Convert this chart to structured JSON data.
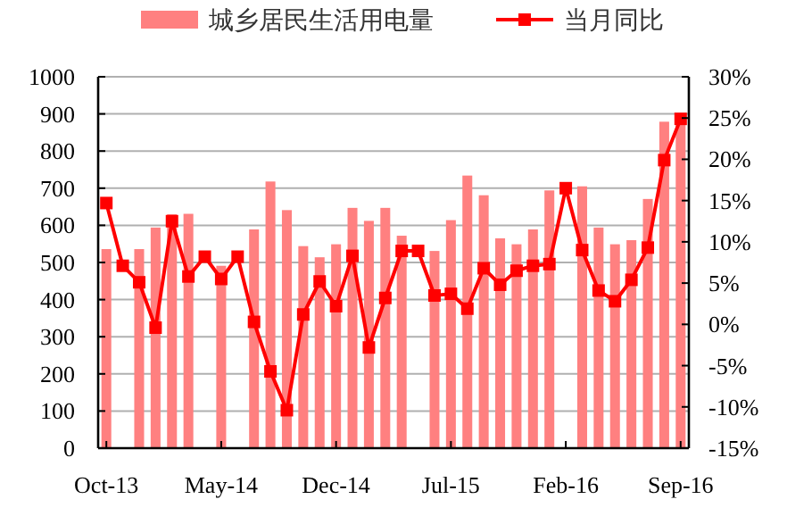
{
  "chart_data": {
    "type": "bar",
    "categories": [
      "Oct-13",
      null,
      null,
      null,
      null,
      null,
      null,
      "May-14",
      null,
      null,
      null,
      null,
      null,
      null,
      "Dec-14",
      null,
      null,
      null,
      null,
      null,
      null,
      "Jul-15",
      null,
      null,
      null,
      null,
      null,
      null,
      "Feb-16",
      null,
      null,
      null,
      null,
      null,
      null,
      "Sep-16"
    ],
    "series": [
      {
        "name": "城乡居民生活用电量",
        "color": "#ff8080",
        "values": [
          536,
          null,
          536,
          594,
          630,
          631,
          null,
          491,
          null,
          589,
          718,
          641,
          544,
          514,
          549,
          647,
          612,
          647,
          572,
          null,
          531,
          614,
          734,
          681,
          565,
          549,
          589,
          694,
          null,
          705,
          594,
          549,
          560,
          671,
          879,
          880
        ]
      },
      {
        "name": "当月同比",
        "type": "line",
        "axis": "y2",
        "color": "#ff0000",
        "marker": "square",
        "values": [
          14.7,
          7.1,
          5.1,
          -0.4,
          12.5,
          5.8,
          8.2,
          5.5,
          8.2,
          0.3,
          -5.7,
          -10.4,
          1.2,
          5.2,
          2.2,
          8.3,
          -2.8,
          3.2,
          8.9,
          8.9,
          3.5,
          3.7,
          1.9,
          6.8,
          4.8,
          6.5,
          7.1,
          7.3,
          16.5,
          9.0,
          4.1,
          2.8,
          5.4,
          9.3,
          19.9,
          24.9
        ]
      }
    ],
    "ylim": [
      0,
      1000
    ],
    "yticks": [
      0,
      100,
      200,
      300,
      400,
      500,
      600,
      700,
      800,
      900,
      1000
    ],
    "y2lim": [
      -15,
      30
    ],
    "y2ticks": [
      {
        "value": -15,
        "label": "-15%"
      },
      {
        "value": -10,
        "label": "-10%"
      },
      {
        "value": -5,
        "label": "-5%"
      },
      {
        "value": 0,
        "label": "0%"
      },
      {
        "value": 5,
        "label": "5%"
      },
      {
        "value": 10,
        "label": "10%"
      },
      {
        "value": 15,
        "label": "15%"
      },
      {
        "value": 20,
        "label": "20%"
      },
      {
        "value": 25,
        "label": "25%"
      },
      {
        "value": 30,
        "label": "30%"
      }
    ],
    "grid": "y",
    "legend": "top"
  }
}
